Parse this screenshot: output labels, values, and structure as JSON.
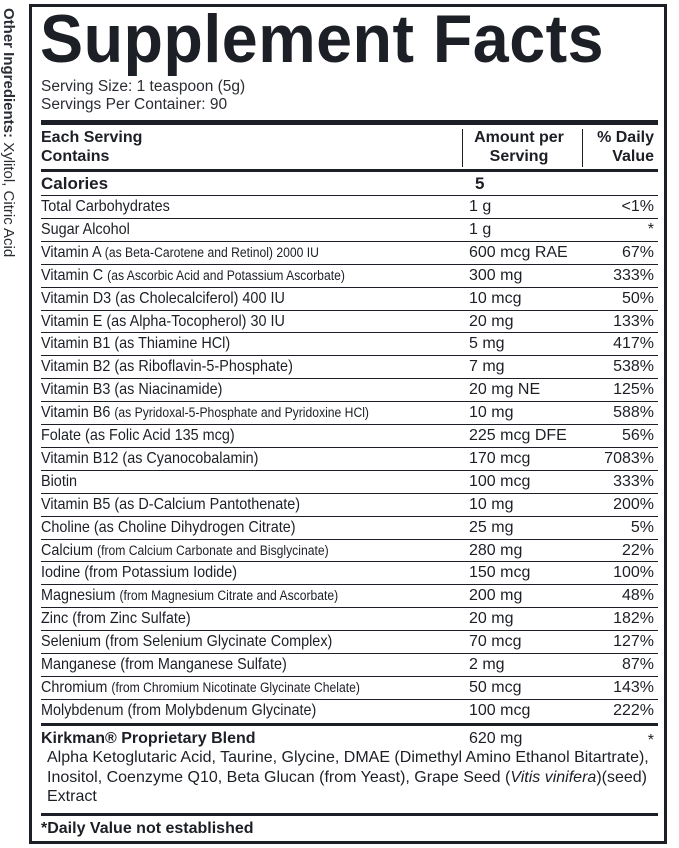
{
  "other_ingredients": {
    "label": "Other Ingredients:",
    "value": "Xylitol, Citric Acid"
  },
  "title": "Supplement Facts",
  "serving_size": "Serving Size: 1 teaspoon (5g)",
  "servings_per_container": "Servings Per Container: 90",
  "header": {
    "col1_line1": "Each Serving",
    "col1_line2": "Contains",
    "col2_line1": "Amount per",
    "col2_line2": "Serving",
    "col3_line1": "% Daily",
    "col3_line2": "Value"
  },
  "calories": {
    "label": "Calories",
    "amount": "5"
  },
  "rows": [
    {
      "name": "Total Carbohydrates",
      "detail": "",
      "amount": "1 g",
      "dv": "<1%"
    },
    {
      "name": "Sugar Alcohol",
      "detail": "",
      "amount": "1 g",
      "dv": "*"
    },
    {
      "name": "Vitamin A",
      "detail": "(as Beta-Carotene and Retinol) 2000 IU",
      "amount": "600 mcg RAE",
      "dv": "67%",
      "small": true
    },
    {
      "name": "Vitamin C",
      "detail": "(as Ascorbic Acid and Potassium Ascorbate)",
      "amount": "300 mg",
      "dv": "333%",
      "small": true
    },
    {
      "name": "Vitamin D3",
      "detail": "(as Cholecalciferol) 400 IU",
      "amount": "10 mcg",
      "dv": "50%"
    },
    {
      "name": "Vitamin E",
      "detail": "(as Alpha-Tocopherol) 30 IU",
      "amount": "20 mg",
      "dv": "133%"
    },
    {
      "name": "Vitamin B1",
      "detail": "(as Thiamine HCl)",
      "amount": "5 mg",
      "dv": "417%"
    },
    {
      "name": "Vitamin B2",
      "detail": "(as Riboflavin-5-Phosphate)",
      "amount": "7 mg",
      "dv": "538%"
    },
    {
      "name": "Vitamin B3",
      "detail": "(as Niacinamide)",
      "amount": "20 mg NE",
      "dv": "125%"
    },
    {
      "name": "Vitamin B6",
      "detail": "(as Pyridoxal-5-Phosphate and Pyridoxine HCl)",
      "amount": "10 mg",
      "dv": "588%",
      "small": true
    },
    {
      "name": "Folate",
      "detail": "(as Folic Acid 135 mcg)",
      "amount": "225 mcg DFE",
      "dv": "56%"
    },
    {
      "name": "Vitamin B12",
      "detail": "(as Cyanocobalamin)",
      "amount": "170 mcg",
      "dv": "7083%"
    },
    {
      "name": "Biotin",
      "detail": "",
      "amount": "100 mcg",
      "dv": "333%"
    },
    {
      "name": "Vitamin B5",
      "detail": "(as D-Calcium Pantothenate)",
      "amount": "10 mg",
      "dv": "200%"
    },
    {
      "name": "Choline",
      "detail": "(as Choline Dihydrogen Citrate)",
      "amount": "25 mg",
      "dv": "5%"
    },
    {
      "name": "Calcium",
      "detail": "(from Calcium Carbonate and Bisglycinate)",
      "amount": "280 mg",
      "dv": "22%",
      "small": true
    },
    {
      "name": "Iodine",
      "detail": "(from Potassium Iodide)",
      "amount": "150 mcg",
      "dv": "100%"
    },
    {
      "name": "Magnesium",
      "detail": "(from Magnesium Citrate and Ascorbate)",
      "amount": "200 mg",
      "dv": "48%",
      "small": true
    },
    {
      "name": "Zinc",
      "detail": "(from Zinc Sulfate)",
      "amount": "20 mg",
      "dv": "182%"
    },
    {
      "name": "Selenium",
      "detail": "(from Selenium Glycinate Complex)",
      "amount": "70 mcg",
      "dv": "127%"
    },
    {
      "name": "Manganese",
      "detail": "(from Manganese Sulfate)",
      "amount": "2 mg",
      "dv": "87%"
    },
    {
      "name": "Chromium",
      "detail": "(from Chromium Nicotinate Glycinate Chelate)",
      "amount": "50 mcg",
      "dv": "143%",
      "small": true
    },
    {
      "name": "Molybdenum",
      "detail": "(from Molybdenum Glycinate)",
      "amount": "100 mcg",
      "dv": "222%"
    }
  ],
  "blend": {
    "title": "Kirkman® Proprietary Blend",
    "amount": "620 mg",
    "dv": "*",
    "ingredients_before": "Alpha Ketoglutaric Acid, Taurine, Glycine, DMAE (Dimethyl Amino Ethanol Bitartrate), Inositol, Coenzyme Q10, Beta Glucan (from Yeast), Grape Seed (",
    "ingredients_italic": "Vitis vinifera",
    "ingredients_after": ")(seed) Extract"
  },
  "footnote": "*Daily Value not established"
}
